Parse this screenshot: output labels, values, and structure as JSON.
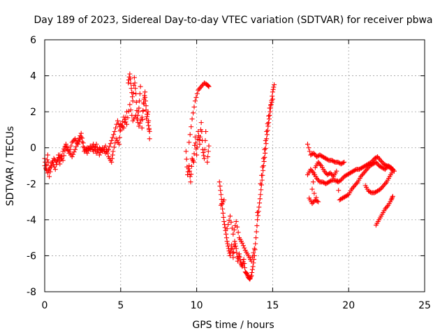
{
  "chart_data": {
    "type": "scatter",
    "title": "Day 189 of 2023, Sidereal Day-to-day VTEC variation (SDTVAR) for receiver pbwa",
    "xlabel": "GPS time / hours",
    "ylabel": "SDTVAR / TECUs",
    "xlim": [
      0,
      25
    ],
    "ylim": [
      -8,
      6
    ],
    "xticks": [
      "0",
      "5",
      "10",
      "15",
      "20",
      "25"
    ],
    "yticks": [
      "-8",
      "-6",
      "-4",
      "-2",
      "0",
      "2",
      "4",
      "6"
    ],
    "grid": true,
    "marker": "+",
    "color": "#ff0000",
    "series": [
      {
        "points": [
          [
            0.0,
            -0.6
          ],
          [
            0.1,
            -1.2
          ],
          [
            0.2,
            -0.4
          ],
          [
            0.3,
            -1.6
          ],
          [
            0.5,
            -0.8
          ],
          [
            0.7,
            -1.2
          ],
          [
            0.9,
            -0.4
          ],
          [
            1.0,
            -0.9
          ],
          [
            1.2,
            -0.2
          ],
          [
            1.4,
            0.2
          ],
          [
            1.6,
            -0.3
          ],
          [
            1.8,
            0.3
          ],
          [
            2.0,
            0.5
          ],
          [
            2.2,
            0.2
          ],
          [
            2.4,
            0.6
          ],
          [
            2.6,
            -0.2
          ],
          [
            2.8,
            0.0
          ],
          [
            3.0,
            -0.1
          ],
          [
            3.2,
            0.2
          ],
          [
            3.4,
            -0.3
          ],
          [
            3.6,
            0.0
          ],
          [
            3.8,
            -0.2
          ],
          [
            4.0,
            0.1
          ],
          [
            4.2,
            -0.5
          ],
          [
            4.4,
            -0.8
          ],
          [
            4.5,
            -0.2
          ],
          [
            4.7,
            0.5
          ],
          [
            4.9,
            0.2
          ],
          [
            5.0,
            1.3
          ],
          [
            5.2,
            1.1
          ],
          [
            5.4,
            2.0
          ],
          [
            5.5,
            3.6
          ],
          [
            5.6,
            4.1
          ],
          [
            5.7,
            3.3
          ],
          [
            5.8,
            2.6
          ],
          [
            5.9,
            3.9
          ],
          [
            6.0,
            3.0
          ],
          [
            6.1,
            1.6
          ],
          [
            6.2,
            2.2
          ],
          [
            6.3,
            3.4
          ],
          [
            6.4,
            1.1
          ],
          [
            6.5,
            2.5
          ],
          [
            6.6,
            3.1
          ],
          [
            6.7,
            1.6
          ],
          [
            6.8,
            2.0
          ],
          [
            6.9,
            0.5
          ]
        ]
      },
      {
        "points": [
          [
            0.0,
            -1.0
          ],
          [
            0.2,
            -1.4
          ],
          [
            0.4,
            -1.0
          ],
          [
            0.6,
            -0.6
          ],
          [
            0.8,
            -0.8
          ],
          [
            1.0,
            -0.4
          ],
          [
            1.2,
            -0.7
          ],
          [
            1.4,
            0.1
          ],
          [
            1.6,
            -0.2
          ],
          [
            1.8,
            -0.5
          ],
          [
            2.0,
            -0.1
          ],
          [
            2.2,
            0.4
          ],
          [
            2.4,
            0.8
          ],
          [
            2.6,
            0.0
          ],
          [
            2.8,
            -0.3
          ],
          [
            3.0,
            0.1
          ],
          [
            3.2,
            -0.2
          ],
          [
            3.4,
            0.2
          ],
          [
            3.6,
            -0.4
          ],
          [
            3.8,
            0.0
          ],
          [
            4.0,
            -0.3
          ],
          [
            4.2,
            -0.1
          ],
          [
            4.4,
            0.4
          ],
          [
            4.6,
            0.9
          ],
          [
            4.8,
            1.5
          ],
          [
            5.0,
            1.0
          ],
          [
            5.2,
            1.7
          ],
          [
            5.4,
            1.3
          ],
          [
            5.6,
            2.4
          ],
          [
            5.8,
            1.5
          ],
          [
            6.0,
            1.8
          ],
          [
            6.2,
            1.2
          ],
          [
            6.4,
            1.7
          ],
          [
            6.6,
            2.8
          ],
          [
            6.8,
            1.4
          ],
          [
            6.9,
            0.9
          ]
        ]
      },
      {
        "points": [
          [
            9.3,
            -0.2
          ],
          [
            9.4,
            -1.5
          ],
          [
            9.5,
            -1.0
          ],
          [
            9.6,
            -1.9
          ],
          [
            9.7,
            -0.6
          ],
          [
            9.8,
            -0.8
          ],
          [
            9.9,
            0.6
          ],
          [
            10.0,
            -0.4
          ],
          [
            10.1,
            0.9
          ],
          [
            10.2,
            0.2
          ],
          [
            10.3,
            1.4
          ],
          [
            10.4,
            -0.1
          ],
          [
            10.5,
            -0.6
          ],
          [
            10.6,
            0.9
          ],
          [
            10.7,
            -0.8
          ],
          [
            10.8,
            0.1
          ],
          [
            9.5,
            0.3
          ],
          [
            9.7,
            1.6
          ],
          [
            9.9,
            2.6
          ],
          [
            10.1,
            3.2
          ],
          [
            10.3,
            3.4
          ],
          [
            10.5,
            3.6
          ],
          [
            10.7,
            3.5
          ],
          [
            10.8,
            3.4
          ]
        ]
      },
      {
        "points": [
          [
            11.5,
            -1.9
          ],
          [
            11.6,
            -2.6
          ],
          [
            11.7,
            -3.4
          ],
          [
            11.8,
            -4.1
          ],
          [
            11.9,
            -4.6
          ],
          [
            12.0,
            -5.2
          ],
          [
            12.1,
            -5.6
          ],
          [
            12.2,
            -6.0
          ],
          [
            12.3,
            -5.4
          ],
          [
            12.4,
            -6.1
          ],
          [
            12.5,
            -5.2
          ],
          [
            12.6,
            -5.6
          ],
          [
            12.7,
            -6.3
          ],
          [
            12.8,
            -5.9
          ],
          [
            12.9,
            -6.4
          ],
          [
            13.0,
            -6.6
          ],
          [
            13.1,
            -6.2
          ],
          [
            13.2,
            -6.9
          ],
          [
            13.3,
            -7.0
          ],
          [
            13.4,
            -7.2
          ],
          [
            13.5,
            -7.3
          ],
          [
            13.6,
            -7.1
          ],
          [
            13.7,
            -6.6
          ],
          [
            13.8,
            -6.0
          ],
          [
            13.9,
            -5.0
          ],
          [
            14.0,
            -4.0
          ],
          [
            14.1,
            -3.3
          ],
          [
            14.2,
            -2.6
          ],
          [
            14.3,
            -1.8
          ],
          [
            14.4,
            -1.0
          ],
          [
            14.5,
            -0.3
          ],
          [
            14.6,
            0.5
          ],
          [
            14.7,
            1.2
          ],
          [
            14.8,
            1.8
          ],
          [
            14.9,
            2.4
          ],
          [
            15.0,
            3.1
          ],
          [
            15.1,
            3.5
          ],
          [
            11.6,
            -3.2
          ],
          [
            11.8,
            -2.9
          ],
          [
            12.0,
            -4.5
          ],
          [
            12.2,
            -3.8
          ],
          [
            12.4,
            -4.8
          ],
          [
            12.6,
            -4.1
          ],
          [
            12.8,
            -5.0
          ],
          [
            13.0,
            -5.3
          ],
          [
            13.2,
            -5.7
          ],
          [
            13.4,
            -6.0
          ],
          [
            13.6,
            -6.3
          ],
          [
            13.8,
            -5.6
          ],
          [
            14.0,
            -3.6
          ],
          [
            14.2,
            -2.0
          ],
          [
            14.4,
            -0.6
          ],
          [
            14.6,
            0.9
          ],
          [
            14.8,
            2.2
          ],
          [
            15.0,
            2.7
          ]
        ]
      },
      {
        "points": [
          [
            17.3,
            0.2
          ],
          [
            17.5,
            -0.4
          ],
          [
            17.7,
            -0.3
          ],
          [
            17.9,
            -0.5
          ],
          [
            18.1,
            -0.4
          ],
          [
            18.3,
            -0.5
          ],
          [
            18.5,
            -0.6
          ],
          [
            18.7,
            -0.7
          ],
          [
            18.9,
            -0.7
          ],
          [
            19.1,
            -0.8
          ],
          [
            19.3,
            -0.8
          ],
          [
            19.5,
            -0.9
          ],
          [
            19.7,
            -0.8
          ],
          [
            17.3,
            -1.5
          ],
          [
            17.5,
            -1.2
          ],
          [
            17.7,
            -1.4
          ],
          [
            17.9,
            -1.7
          ],
          [
            18.1,
            -1.9
          ],
          [
            18.3,
            -1.9
          ],
          [
            18.5,
            -2.0
          ],
          [
            18.7,
            -1.9
          ],
          [
            18.9,
            -1.8
          ],
          [
            19.1,
            -1.8
          ],
          [
            19.3,
            -1.9
          ],
          [
            19.5,
            -1.8
          ],
          [
            19.7,
            -1.6
          ],
          [
            19.9,
            -1.5
          ],
          [
            20.1,
            -1.4
          ],
          [
            20.3,
            -1.3
          ],
          [
            20.5,
            -1.2
          ],
          [
            20.7,
            -1.2
          ],
          [
            20.9,
            -1.1
          ],
          [
            21.1,
            -1.0
          ],
          [
            21.3,
            -0.9
          ],
          [
            21.5,
            -0.8
          ],
          [
            21.7,
            -0.6
          ],
          [
            21.9,
            -0.5
          ],
          [
            22.1,
            -0.7
          ],
          [
            22.3,
            -0.9
          ],
          [
            22.5,
            -1.0
          ],
          [
            22.7,
            -1.1
          ],
          [
            22.9,
            -1.2
          ],
          [
            17.4,
            -2.8
          ],
          [
            17.6,
            -3.1
          ],
          [
            17.8,
            -2.9
          ],
          [
            18.0,
            -3.0
          ],
          [
            17.6,
            -2.3
          ],
          [
            17.8,
            -1.1
          ],
          [
            18.0,
            -0.8
          ],
          [
            18.2,
            -1.0
          ],
          [
            18.4,
            -1.3
          ],
          [
            18.6,
            -1.5
          ],
          [
            18.8,
            -1.4
          ],
          [
            19.0,
            -1.6
          ],
          [
            19.2,
            -1.3
          ],
          [
            19.4,
            -2.9
          ],
          [
            19.6,
            -2.8
          ],
          [
            19.8,
            -2.7
          ],
          [
            20.0,
            -2.6
          ],
          [
            20.2,
            -2.3
          ],
          [
            20.4,
            -2.1
          ],
          [
            20.6,
            -1.9
          ],
          [
            20.8,
            -1.6
          ],
          [
            21.0,
            -1.4
          ],
          [
            21.2,
            -1.2
          ],
          [
            21.4,
            -1.0
          ],
          [
            21.6,
            -0.9
          ],
          [
            21.8,
            -0.8
          ],
          [
            22.0,
            -1.0
          ],
          [
            22.2,
            -1.1
          ],
          [
            22.4,
            -1.2
          ],
          [
            22.6,
            -1.0
          ],
          [
            22.8,
            -1.1
          ],
          [
            23.0,
            -1.3
          ],
          [
            21.1,
            -2.1
          ],
          [
            21.3,
            -2.4
          ],
          [
            21.5,
            -2.5
          ],
          [
            21.7,
            -2.5
          ],
          [
            21.9,
            -2.4
          ],
          [
            22.1,
            -2.3
          ],
          [
            22.3,
            -2.1
          ],
          [
            22.5,
            -1.9
          ],
          [
            22.7,
            -1.6
          ],
          [
            22.9,
            -1.3
          ],
          [
            21.8,
            -4.3
          ],
          [
            22.0,
            -4.0
          ],
          [
            22.2,
            -3.7
          ],
          [
            22.4,
            -3.4
          ],
          [
            22.6,
            -3.2
          ],
          [
            22.8,
            -2.9
          ],
          [
            22.9,
            -2.7
          ]
        ]
      }
    ]
  }
}
